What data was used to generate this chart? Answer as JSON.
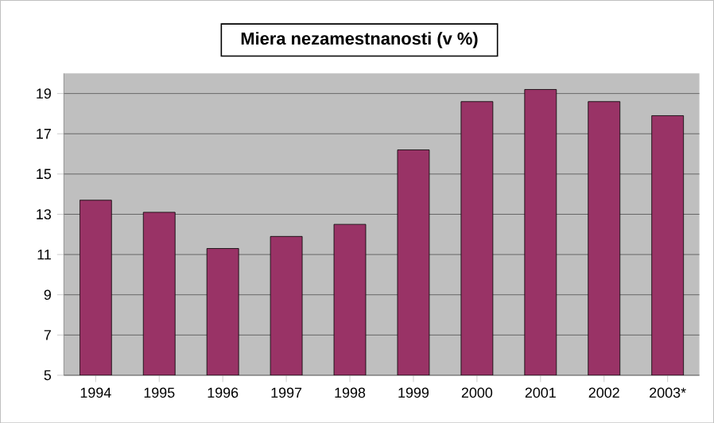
{
  "chart_data": {
    "type": "bar",
    "title": "Miera nezamestnanosti (v %)",
    "categories": [
      "1994",
      "1995",
      "1996",
      "1997",
      "1998",
      "1999",
      "2000",
      "2001",
      "2002",
      "2003*"
    ],
    "values": [
      13.7,
      13.1,
      11.3,
      11.9,
      12.5,
      16.2,
      18.6,
      19.2,
      18.6,
      17.9
    ],
    "color": "#993366",
    "ylim": [
      5,
      20
    ],
    "yticks": [
      5,
      7,
      9,
      11,
      13,
      15,
      17,
      19
    ],
    "grid": "y"
  }
}
